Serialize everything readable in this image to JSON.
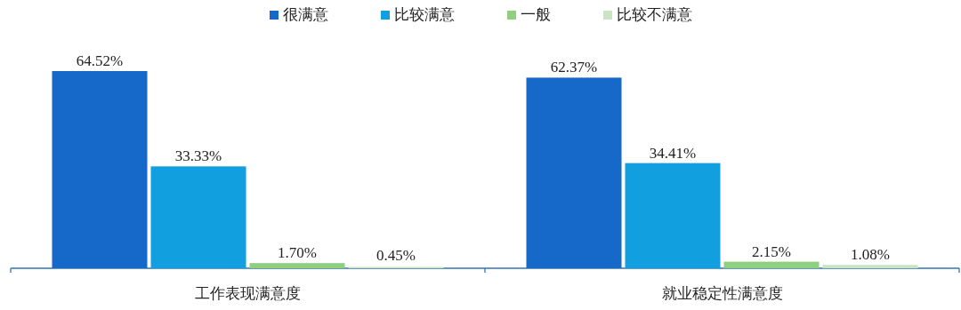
{
  "chart_data": {
    "type": "bar",
    "categories": [
      "工作表现满意度",
      "就业稳定性满意度"
    ],
    "legend": "top",
    "series": [
      {
        "name": "很满意",
        "color": "#1769c9",
        "values": [
          64.52,
          62.37
        ],
        "value_labels": [
          "64.52%",
          "62.37%"
        ]
      },
      {
        "name": "比较满意",
        "color": "#129fe0",
        "values": [
          33.33,
          34.41
        ],
        "value_labels": [
          "33.33%",
          "34.41%"
        ]
      },
      {
        "name": "一般",
        "color": "#8ed07f",
        "values": [
          1.7,
          2.15
        ],
        "value_labels": [
          "1.70%",
          "2.15%"
        ]
      },
      {
        "name": "比较不满意",
        "color": "#c8e4c2",
        "values": [
          0.45,
          1.08
        ],
        "value_labels": [
          "0.45%",
          "1.08%"
        ]
      }
    ]
  }
}
